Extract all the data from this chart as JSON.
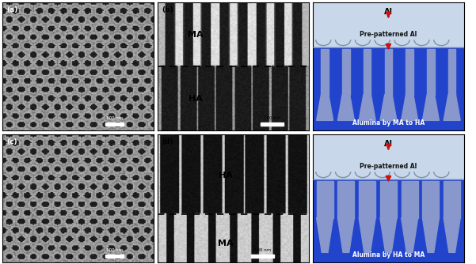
{
  "fig_width": 6.01,
  "fig_height": 3.34,
  "dpi": 100,
  "bg_color": "#ffffff",
  "border_color": "#000000",
  "schematic_top_bg": "#c8d8ea",
  "schematic_blue": "#2244cc",
  "schematic_pore_color": "#7090d0",
  "schematic_wall_light": "#9ab0e0",
  "red_arrow_color": "#cc1111",
  "label_al_top": "Al",
  "label_prepatterned": "Pre-patterned Al",
  "label_alumina_top": "Alumina by MA to HA",
  "label_alumina_bottom": "Alumina by HA to MA",
  "ma_label": "MA",
  "ha_label": "HA",
  "scalebar_text": "100 nm"
}
